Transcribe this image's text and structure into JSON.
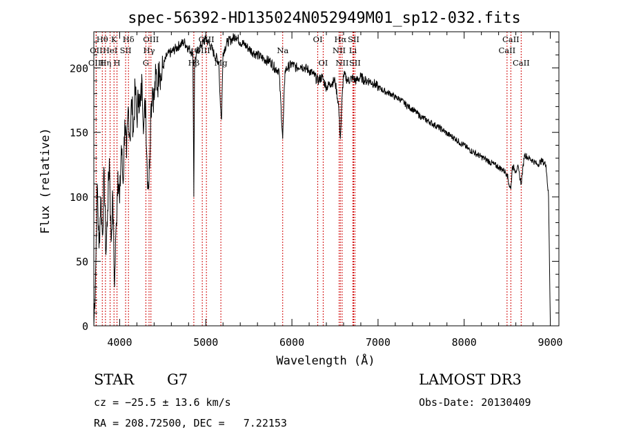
{
  "chart_data": {
    "type": "line",
    "title": "spec-56392-HD135024N052949M01_sp12-032.fits",
    "xlabel": "Wavelength (Å)",
    "ylabel": "Flux (relative)",
    "xlim": [
      3700,
      9100
    ],
    "ylim": [
      0,
      228
    ],
    "x_ticks": [
      4000,
      5000,
      6000,
      7000,
      8000,
      9000
    ],
    "y_ticks": [
      0,
      50,
      100,
      150,
      200
    ],
    "series": [
      {
        "name": "flux",
        "x": [
          3700,
          3720,
          3740,
          3760,
          3780,
          3800,
          3820,
          3840,
          3860,
          3880,
          3900,
          3920,
          3940,
          3960,
          3980,
          4000,
          4020,
          4040,
          4060,
          4080,
          4100,
          4120,
          4140,
          4160,
          4180,
          4200,
          4220,
          4240,
          4260,
          4280,
          4300,
          4320,
          4340,
          4360,
          4380,
          4400,
          4420,
          4440,
          4460,
          4480,
          4500,
          4550,
          4600,
          4650,
          4700,
          4750,
          4800,
          4850,
          4861,
          4870,
          4900,
          4950,
          5000,
          5050,
          5100,
          5150,
          5170,
          5183,
          5200,
          5250,
          5300,
          5350,
          5400,
          5450,
          5500,
          5550,
          5600,
          5650,
          5700,
          5750,
          5800,
          5850,
          5893,
          5920,
          5950,
          6000,
          6050,
          6100,
          6150,
          6200,
          6250,
          6300,
          6350,
          6400,
          6450,
          6500,
          6540,
          6563,
          6585,
          6600,
          6650,
          6700,
          6750,
          6800,
          6850,
          6900,
          6950,
          7000,
          7050,
          7100,
          7150,
          7200,
          7250,
          7300,
          7350,
          7400,
          7450,
          7500,
          7550,
          7600,
          7650,
          7700,
          7750,
          7800,
          7850,
          7900,
          7950,
          8000,
          8050,
          8100,
          8150,
          8200,
          8250,
          8300,
          8350,
          8400,
          8450,
          8498,
          8520,
          8542,
          8560,
          8600,
          8620,
          8662,
          8700,
          8750,
          8800,
          8850,
          8900,
          8950,
          8980,
          9000
        ],
        "y": [
          0,
          40,
          110,
          60,
          100,
          70,
          120,
          55,
          90,
          130,
          65,
          100,
          30,
          80,
          120,
          95,
          140,
          110,
          160,
          130,
          170,
          145,
          175,
          150,
          185,
          160,
          180,
          170,
          190,
          155,
          175,
          120,
          110,
          165,
          185,
          175,
          195,
          185,
          205,
          190,
          200,
          210,
          212,
          215,
          218,
          220,
          215,
          212,
          100,
          205,
          212,
          218,
          222,
          218,
          210,
          205,
          170,
          160,
          212,
          220,
          222,
          225,
          220,
          218,
          215,
          212,
          210,
          208,
          206,
          205,
          200,
          198,
          145,
          198,
          200,
          203,
          200,
          202,
          200,
          198,
          195,
          190,
          193,
          185,
          188,
          190,
          172,
          145,
          180,
          195,
          190,
          192,
          190,
          193,
          190,
          190,
          188,
          185,
          183,
          181,
          180,
          177,
          176,
          173,
          170,
          168,
          165,
          162,
          160,
          158,
          156,
          154,
          152,
          149,
          147,
          145,
          142,
          140,
          137,
          135,
          133,
          131,
          129,
          127,
          125,
          123,
          121,
          118,
          110,
          106,
          124,
          120,
          124,
          110,
          133,
          130,
          128,
          125,
          128,
          125,
          100,
          5
        ]
      }
    ],
    "spectral_lines": [
      {
        "label": "Hθ",
        "x": 3798,
        "row": 1
      },
      {
        "label": "OII",
        "x": 3727,
        "row": 2
      },
      {
        "label": "OIII",
        "x": 3727,
        "row": 3
      },
      {
        "label": "K",
        "x": 3934,
        "row": 1
      },
      {
        "label": "HeI",
        "x": 3889,
        "row": 2
      },
      {
        "label": "Hη",
        "x": 3835,
        "row": 3
      },
      {
        "label": "Hδ",
        "x": 4102,
        "row": 1
      },
      {
        "label": "SII",
        "x": 4069,
        "row": 2
      },
      {
        "label": "H",
        "x": 3969,
        "row": 3
      },
      {
        "label": "OIII",
        "x": 4363,
        "row": 1
      },
      {
        "label": "Hγ",
        "x": 4341,
        "row": 2
      },
      {
        "label": "G",
        "x": 4304,
        "row": 3
      },
      {
        "label": "OIII",
        "x": 5007,
        "row": 1
      },
      {
        "label": "OIII",
        "x": 4959,
        "row": 2
      },
      {
        "label": "Hβ",
        "x": 4861,
        "row": 3
      },
      {
        "label": "Mg",
        "x": 5175,
        "row": 3
      },
      {
        "label": "Na",
        "x": 5893,
        "row": 2
      },
      {
        "label": "OI",
        "x": 6300,
        "row": 1
      },
      {
        "label": "OI",
        "x": 6363,
        "row": 3
      },
      {
        "label": "Hα",
        "x": 6563,
        "row": 1
      },
      {
        "label": "SII",
        "x": 6716,
        "row": 1
      },
      {
        "label": "NII",
        "x": 6548,
        "row": 2
      },
      {
        "label": "Li",
        "x": 6708,
        "row": 2
      },
      {
        "label": "NII",
        "x": 6583,
        "row": 3
      },
      {
        "label": "SII",
        "x": 6731,
        "row": 3
      },
      {
        "label": "CaII",
        "x": 8542,
        "row": 1
      },
      {
        "label": "CaII",
        "x": 8498,
        "row": 2
      },
      {
        "label": "CaII",
        "x": 8662,
        "row": 3
      }
    ]
  },
  "info": {
    "object_class": "STAR",
    "subclass": "G7",
    "survey": "LAMOST DR3",
    "cz": "cz = −25.5 ± 13.6 km/s",
    "obs_date": "Obs-Date: 20130409",
    "radec": "RA = 208.72500, DEC =   7.22153"
  }
}
